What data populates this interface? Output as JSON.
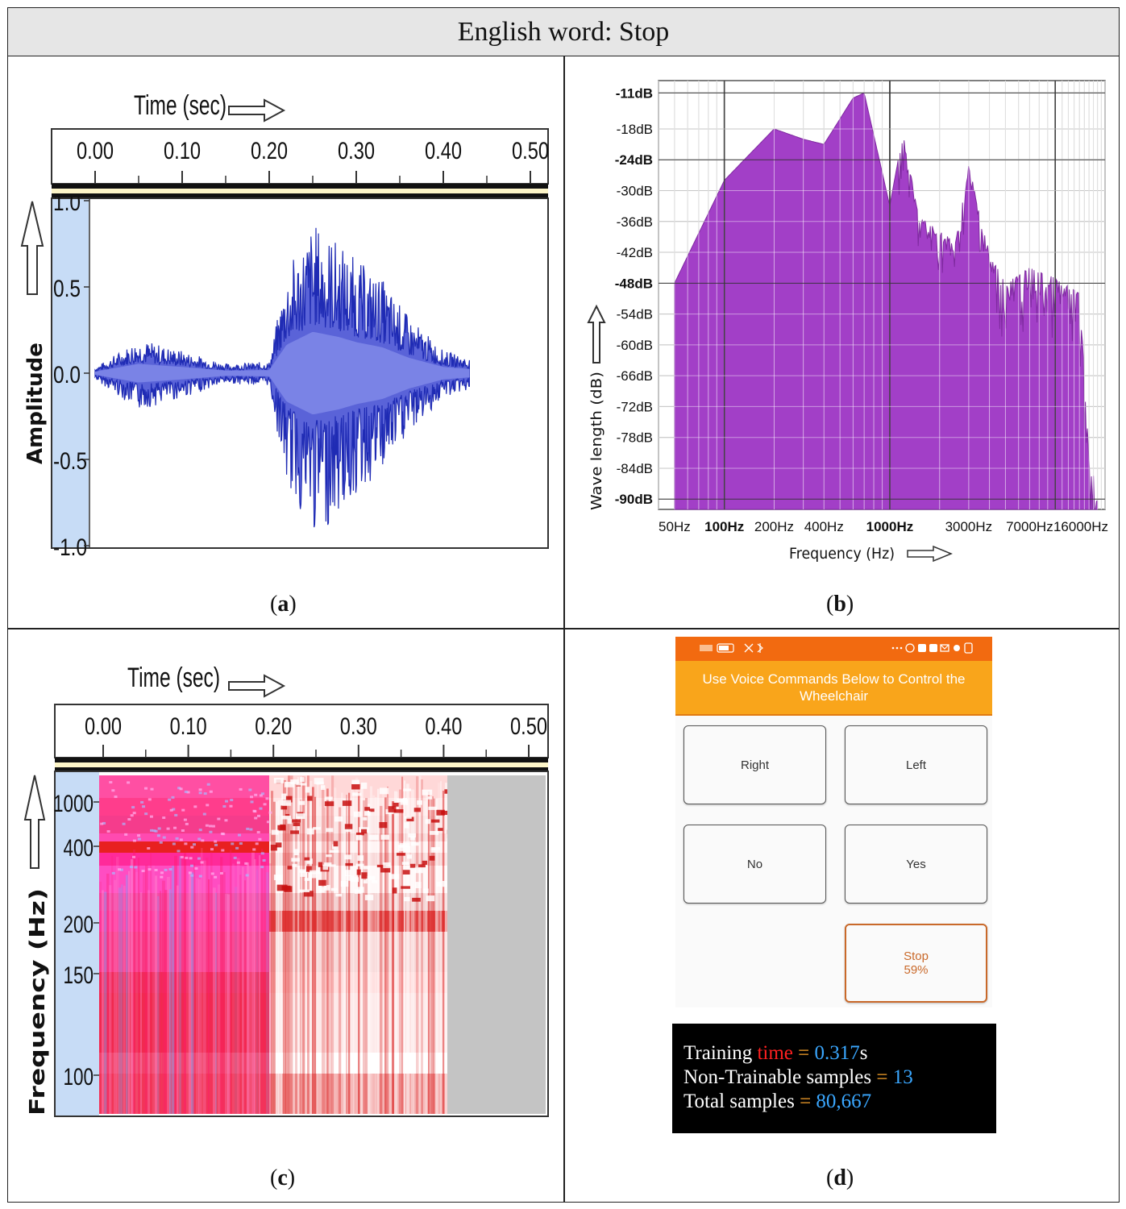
{
  "title": "English word: Stop",
  "panels": {
    "a": {
      "caption_letter": "a",
      "xlabel": "Time (sec)",
      "ylabel": "Amplitude",
      "xticks": [
        "0.00",
        "0.10",
        "0.20",
        "0.30",
        "0.40",
        "0.50"
      ],
      "yticks": [
        "1.0",
        "0.5",
        "0.0",
        "-0.5",
        "-1.0"
      ]
    },
    "b": {
      "caption_letter": "b",
      "xlabel": "Frequency (Hz)",
      "ylabel": "Wave length (dB)",
      "xticks": [
        "50Hz",
        "100Hz",
        "200Hz",
        "400Hz",
        "1000Hz",
        "3000Hz",
        "7000Hz",
        "16000Hz"
      ],
      "yticks": [
        "-11dB",
        "-18dB",
        "-24dB",
        "-30dB",
        "-36dB",
        "-42dB",
        "-48dB",
        "-54dB",
        "-60dB",
        "-66dB",
        "-72dB",
        "-78dB",
        "-84dB",
        "-90dB"
      ]
    },
    "c": {
      "caption_letter": "c",
      "xlabel": "Time (sec)",
      "ylabel": "Frequency (Hz)",
      "xticks": [
        "0.00",
        "0.10",
        "0.20",
        "0.30",
        "0.40",
        "0.50"
      ],
      "yticks": [
        "1000",
        "400",
        "200",
        "150",
        "100"
      ]
    },
    "d": {
      "caption_letter": "d",
      "app_header": "Use Voice Commands Below to Control the Wheelchair",
      "buttons": {
        "right": "Right",
        "left": "Left",
        "no": "No",
        "yes": "Yes",
        "stop": "Stop",
        "stop_confidence": "59%"
      },
      "stats": {
        "training_label": "Training",
        "time_word": "time",
        "eq": "=",
        "training_value": "0.317",
        "training_unit": "s",
        "nontrainable_label": "Non-Trainable samples",
        "nontrainable_value": "13",
        "total_label": "Total samples",
        "total_value": "80,667"
      },
      "colors": {
        "status_bar": "#f26a10",
        "header": "#f9a51b",
        "stop_accent": "#c9692a"
      }
    }
  },
  "chart_data": [
    {
      "type": "line",
      "panel": "a",
      "description_series": "waveform",
      "x": [
        0.0,
        0.05,
        0.1,
        0.15,
        0.2,
        0.22,
        0.25,
        0.28,
        0.3,
        0.33,
        0.36,
        0.4,
        0.43
      ],
      "y_envelope": [
        0.03,
        0.18,
        0.12,
        0.05,
        0.06,
        0.55,
        0.8,
        0.7,
        0.6,
        0.5,
        0.3,
        0.12,
        0.08
      ],
      "xlabel": "Time (sec)",
      "ylabel": "Amplitude",
      "xlim": [
        0.0,
        0.5
      ],
      "ylim": [
        -1.0,
        1.0
      ],
      "color": "#2a35c8"
    },
    {
      "type": "area",
      "panel": "b",
      "x": [
        50,
        100,
        200,
        300,
        400,
        600,
        700,
        1000,
        1200,
        1500,
        2500,
        3000,
        4000,
        5000,
        7000,
        10000,
        14000,
        16000,
        18000
      ],
      "y": [
        -48,
        -28,
        -18,
        -20,
        -21,
        -12,
        -11,
        -33,
        -19,
        -35,
        -40,
        -25,
        -42,
        -48,
        -45,
        -47,
        -50,
        -80,
        -90
      ],
      "xlabel": "Frequency (Hz)",
      "ylabel": "Wave length (dB)",
      "xscale": "log",
      "ylim": [
        -90,
        -11
      ],
      "grid": true,
      "color": "#a23fc7"
    },
    {
      "type": "heatmap",
      "panel": "c",
      "xlabel": "Time (sec)",
      "ylabel": "Frequency (Hz)",
      "xlim": [
        0.0,
        0.5
      ],
      "yscale": "log"
    }
  ]
}
